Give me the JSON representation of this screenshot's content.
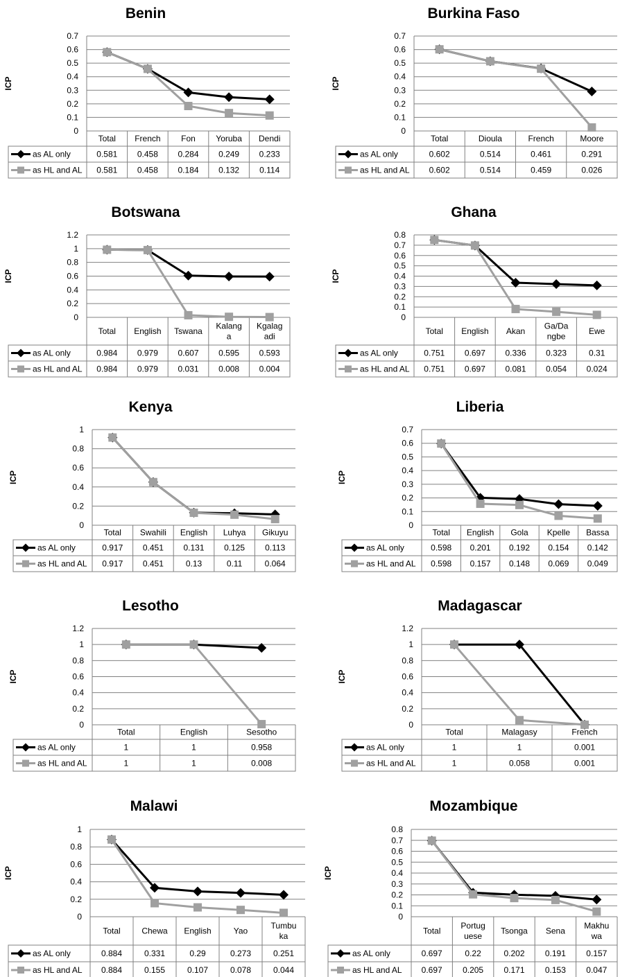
{
  "series_names": [
    "as AL only",
    "as HL and AL"
  ],
  "colors": {
    "al_only": "#000000",
    "hl_and_al": "#a0a0a0",
    "grid": "#808080"
  },
  "ylabel": "ICP",
  "chart_data": [
    {
      "type": "line",
      "title": "Benin",
      "categories": [
        "Total",
        "French",
        "Fon",
        "Yoruba",
        "Dendi"
      ],
      "ylim": [
        0,
        0.7
      ],
      "yticks": [
        0,
        0.1,
        0.2,
        0.3,
        0.4,
        0.5,
        0.6,
        0.7
      ],
      "series": [
        {
          "name": "as AL only",
          "values": [
            0.581,
            0.458,
            0.284,
            0.249,
            0.233
          ]
        },
        {
          "name": "as HL and AL",
          "values": [
            0.581,
            0.458,
            0.184,
            0.132,
            0.114
          ]
        }
      ]
    },
    {
      "type": "line",
      "title": "Burkina Faso",
      "categories": [
        "Total",
        "Dioula",
        "French",
        "Moore"
      ],
      "ylim": [
        0,
        0.7
      ],
      "yticks": [
        0,
        0.1,
        0.2,
        0.3,
        0.4,
        0.5,
        0.6,
        0.7
      ],
      "series": [
        {
          "name": "as AL only",
          "values": [
            0.602,
            0.514,
            0.461,
            0.291
          ]
        },
        {
          "name": "as HL and AL",
          "values": [
            0.602,
            0.514,
            0.459,
            0.026
          ]
        }
      ]
    },
    {
      "type": "line",
      "title": "Botswana",
      "categories": [
        "Total",
        "English",
        "Tswana",
        "Kalang\na",
        "Kgalag\nadi"
      ],
      "ylim": [
        0,
        1.2
      ],
      "yticks": [
        0,
        0.2,
        0.4,
        0.6,
        0.8,
        1,
        1.2
      ],
      "series": [
        {
          "name": "as AL only",
          "values": [
            0.984,
            0.979,
            0.607,
            0.595,
            0.593
          ]
        },
        {
          "name": "as HL and AL",
          "values": [
            0.984,
            0.979,
            0.031,
            0.008,
            0.004
          ]
        }
      ]
    },
    {
      "type": "line",
      "title": "Ghana",
      "categories": [
        "Total",
        "English",
        "Akan",
        "Ga/Da\nngbe",
        "Ewe"
      ],
      "ylim": [
        0,
        0.8
      ],
      "yticks": [
        0,
        0.1,
        0.2,
        0.3,
        0.4,
        0.5,
        0.6,
        0.7,
        0.8
      ],
      "series": [
        {
          "name": "as AL only",
          "values": [
            0.751,
            0.697,
            0.336,
            0.323,
            0.31
          ]
        },
        {
          "name": "as HL and AL",
          "values": [
            0.751,
            0.697,
            0.081,
            0.054,
            0.024
          ]
        }
      ]
    },
    {
      "type": "line",
      "title": "Kenya",
      "categories": [
        "Total",
        "Swahili",
        "English",
        "Luhya",
        "Gikuyu"
      ],
      "ylim": [
        0,
        1
      ],
      "yticks": [
        0,
        0.2,
        0.4,
        0.6,
        0.8,
        1
      ],
      "series": [
        {
          "name": "as AL only",
          "values": [
            0.917,
            0.451,
            0.131,
            0.125,
            0.113
          ]
        },
        {
          "name": "as HL and AL",
          "values": [
            0.917,
            0.451,
            0.13,
            0.11,
            0.064
          ]
        }
      ]
    },
    {
      "type": "line",
      "title": "Liberia",
      "categories": [
        "Total",
        "English",
        "Gola",
        "Kpelle",
        "Bassa"
      ],
      "ylim": [
        0,
        0.7
      ],
      "yticks": [
        0,
        0.1,
        0.2,
        0.3,
        0.4,
        0.5,
        0.6,
        0.7
      ],
      "series": [
        {
          "name": "as AL only",
          "values": [
            0.598,
            0.201,
            0.192,
            0.154,
            0.142
          ]
        },
        {
          "name": "as HL and AL",
          "values": [
            0.598,
            0.157,
            0.148,
            0.069,
            0.049
          ]
        }
      ]
    },
    {
      "type": "line",
      "title": "Lesotho",
      "categories": [
        "Total",
        "English",
        "Sesotho"
      ],
      "ylim": [
        0,
        1.2
      ],
      "yticks": [
        0,
        0.2,
        0.4,
        0.6,
        0.8,
        1,
        1.2
      ],
      "series": [
        {
          "name": "as AL only",
          "values": [
            1,
            1,
            0.958
          ]
        },
        {
          "name": "as HL and AL",
          "values": [
            1,
            1,
            0.008
          ]
        }
      ]
    },
    {
      "type": "line",
      "title": "Madagascar",
      "categories": [
        "Total",
        "Malagasy",
        "French"
      ],
      "ylim": [
        0,
        1.2
      ],
      "yticks": [
        0,
        0.2,
        0.4,
        0.6,
        0.8,
        1,
        1.2
      ],
      "series": [
        {
          "name": "as AL only",
          "values": [
            1,
            1,
            0.001
          ]
        },
        {
          "name": "as HL and AL",
          "values": [
            1,
            0.058,
            0.001
          ]
        }
      ]
    },
    {
      "type": "line",
      "title": "Malawi",
      "categories": [
        "Total",
        "Chewa",
        "English",
        "Yao",
        "Tumbu\nka"
      ],
      "ylim": [
        0,
        1
      ],
      "yticks": [
        0,
        0.2,
        0.4,
        0.6,
        0.8,
        1
      ],
      "series": [
        {
          "name": "as AL only",
          "values": [
            0.884,
            0.331,
            0.29,
            0.273,
            0.251
          ]
        },
        {
          "name": "as HL and AL",
          "values": [
            0.884,
            0.155,
            0.107,
            0.078,
            0.044
          ]
        }
      ]
    },
    {
      "type": "line",
      "title": "Mozambique",
      "categories": [
        "Total",
        "Portug\nuese",
        "Tsonga",
        "Sena",
        "Makhu\nwa"
      ],
      "ylim": [
        0,
        0.8
      ],
      "yticks": [
        0,
        0.1,
        0.2,
        0.3,
        0.4,
        0.5,
        0.6,
        0.7,
        0.8
      ],
      "series": [
        {
          "name": "as AL only",
          "values": [
            0.697,
            0.22,
            0.202,
            0.191,
            0.157
          ]
        },
        {
          "name": "as HL and AL",
          "values": [
            0.697,
            0.205,
            0.171,
            0.153,
            0.047
          ]
        }
      ]
    }
  ]
}
